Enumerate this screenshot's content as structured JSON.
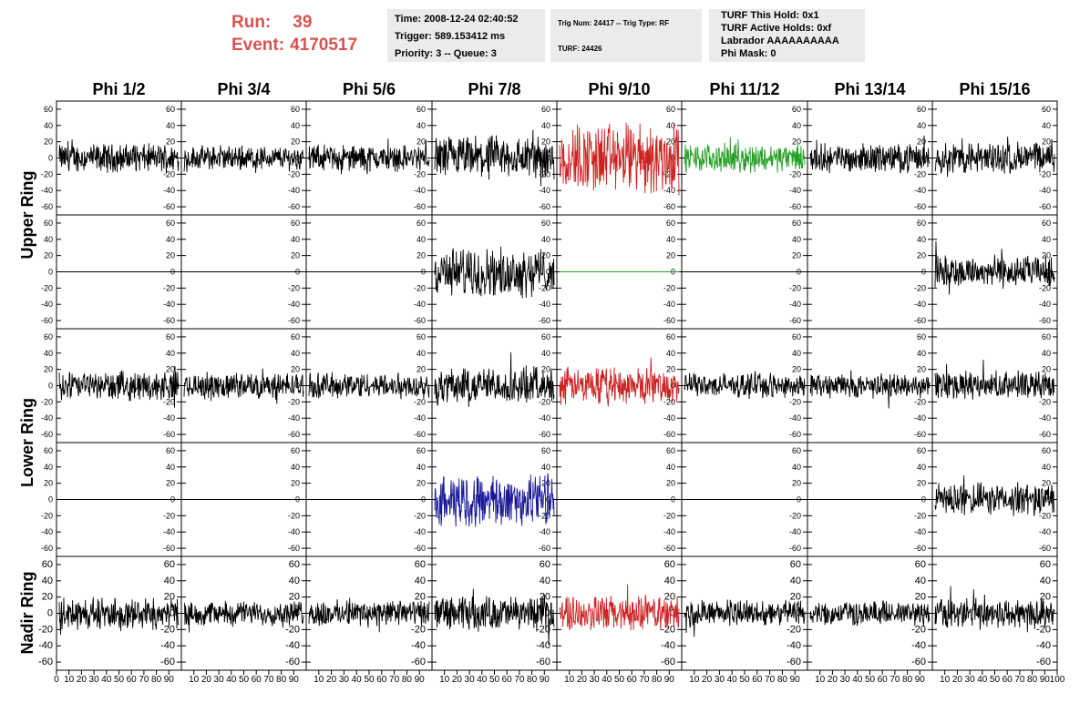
{
  "header": {
    "run_label": "Run:",
    "run_value": "39",
    "event_label": "Event:",
    "event_value": "4170517",
    "time": "Time: 2008-12-24 02:40:52",
    "trigger": "Trigger: 589.153412 ms",
    "priority": "Priority: 3 -- Queue: 3",
    "trig_num": "Trig Num: 24417 -- Trig Type: RF",
    "turf": "TURF: 24426",
    "turf_hold": "TURF This Hold: 0x1",
    "turf_active": "TURF Active Holds: 0xf",
    "labrador": "Labrador AAAAAAAAAA",
    "phi_mask": "Phi Mask: 0"
  },
  "colors": {
    "title": "#d9534f",
    "normal": "#000000",
    "red": "#cc2222",
    "green": "#22a022",
    "blue": "#1a1a99",
    "box_bg": "#ebebeb"
  },
  "chart_data": {
    "type": "line",
    "columns": [
      "Phi 1/2",
      "Phi 3/4",
      "Phi 5/6",
      "Phi 7/8",
      "Phi 9/10",
      "Phi 11/12",
      "Phi 13/14",
      "Phi 15/16"
    ],
    "rings": [
      "Upper Ring",
      "Lower Ring",
      "Nadir Ring"
    ],
    "ylim": [
      -70,
      70
    ],
    "xlim": [
      0,
      100
    ],
    "y_ticks": [
      "60",
      "40",
      "20",
      "0",
      "-20",
      "-40",
      "-60"
    ],
    "x_ticks": [
      "0",
      "10",
      "20",
      "30",
      "40",
      "50",
      "60",
      "70",
      "80",
      "90",
      "100"
    ],
    "grid": false,
    "panels": [
      [
        {
          "amp": 14,
          "color": "normal"
        },
        {
          "amp": 12,
          "color": "normal"
        },
        {
          "amp": 13,
          "color": "normal"
        },
        {
          "amp": 22,
          "color": "normal"
        },
        {
          "amp": 35,
          "color": "red"
        },
        {
          "amp": 14,
          "color": "green"
        },
        {
          "amp": 14,
          "color": "normal"
        },
        {
          "amp": 16,
          "color": "normal"
        }
      ],
      [
        {
          "amp": 0,
          "color": "normal"
        },
        {
          "amp": 0,
          "color": "normal"
        },
        {
          "amp": 0,
          "color": "normal"
        },
        {
          "amp": 24,
          "color": "normal"
        },
        {
          "amp": 0,
          "color": "green"
        },
        {
          "amp": 0,
          "color": "normal"
        },
        {
          "amp": 0,
          "color": "normal"
        },
        {
          "amp": 16,
          "color": "normal"
        }
      ],
      [
        {
          "amp": 14,
          "color": "normal"
        },
        {
          "amp": 13,
          "color": "normal"
        },
        {
          "amp": 13,
          "color": "normal"
        },
        {
          "amp": 18,
          "color": "normal"
        },
        {
          "amp": 18,
          "color": "red"
        },
        {
          "amp": 12,
          "color": "normal"
        },
        {
          "amp": 12,
          "color": "normal"
        },
        {
          "amp": 14,
          "color": "normal"
        }
      ],
      [
        {
          "amp": 0,
          "color": "normal"
        },
        {
          "amp": 0,
          "color": "normal"
        },
        {
          "amp": 0,
          "color": "normal"
        },
        {
          "amp": 26,
          "color": "blue"
        },
        {
          "amp": 0,
          "color": "normal"
        },
        {
          "amp": 0,
          "color": "normal"
        },
        {
          "amp": 0,
          "color": "normal"
        },
        {
          "amp": 16,
          "color": "normal"
        }
      ],
      [
        {
          "amp": 16,
          "color": "normal"
        },
        {
          "amp": 12,
          "color": "normal"
        },
        {
          "amp": 13,
          "color": "normal"
        },
        {
          "amp": 17,
          "color": "normal"
        },
        {
          "amp": 18,
          "color": "red"
        },
        {
          "amp": 13,
          "color": "normal"
        },
        {
          "amp": 12,
          "color": "normal"
        },
        {
          "amp": 15,
          "color": "normal"
        }
      ]
    ]
  }
}
